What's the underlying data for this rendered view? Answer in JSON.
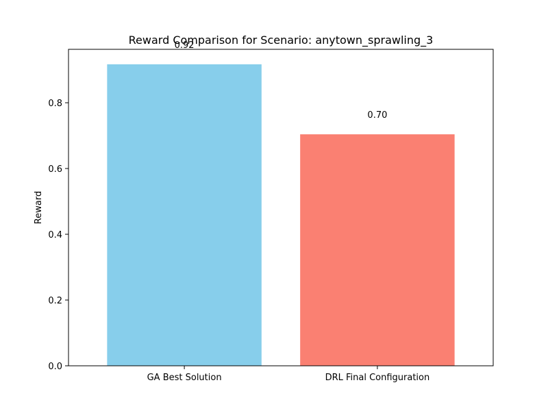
{
  "chart_data": {
    "type": "bar",
    "title": "Reward Comparison for Scenario: anytown_sprawling_3",
    "xlabel": "",
    "ylabel": "Reward",
    "categories": [
      "GA Best Solution",
      "DRL Final Configuration"
    ],
    "values": [
      0.917,
      0.704
    ],
    "data_labels": [
      "0.92",
      "0.70"
    ],
    "colors": [
      "#87ceeb",
      "#fa8072"
    ],
    "ylim": [
      0,
      0.9625
    ],
    "yticks": [
      0.0,
      0.2,
      0.4,
      0.6,
      0.8
    ],
    "ytick_labels": [
      "0.0",
      "0.2",
      "0.4",
      "0.6",
      "0.8"
    ],
    "grid": false,
    "legend": "none"
  }
}
